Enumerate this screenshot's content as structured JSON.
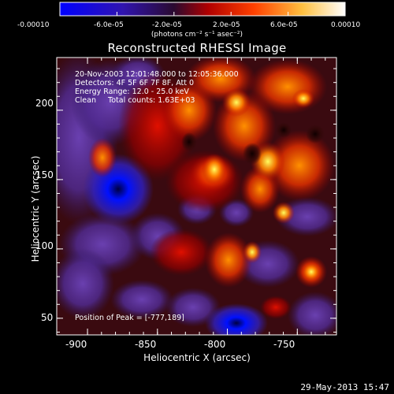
{
  "colorbar": {
    "tick_labels": [
      "-0.00010",
      "-6.0e-05",
      "-2.0e-05",
      "2.0e-05",
      "6.0e-05",
      "0.00010"
    ],
    "units_label": "(photons cm⁻² s⁻¹ asec⁻²)",
    "colors": [
      "#0000ff",
      "#2a1070",
      "#301040",
      "#c00000",
      "#ff6000",
      "#ffff80",
      "#ffffff"
    ]
  },
  "chart_data": {
    "type": "heatmap",
    "title": "Reconstructed RHESSI Image",
    "xlabel": "Heliocentric X (arcsec)",
    "ylabel": "Heliocentric Y (arcsec)",
    "xlim": [
      -922,
      -722
    ],
    "ylim": [
      38,
      238
    ],
    "x_ticks": [
      -900,
      -850,
      -800,
      -750
    ],
    "x_tick_labels": [
      "-900",
      "-850",
      "-800",
      "-750"
    ],
    "y_ticks": [
      50,
      100,
      150,
      200
    ],
    "y_tick_labels": [
      "50",
      "100",
      "150",
      "200"
    ],
    "value_range": [
      -0.0001,
      0.0001
    ],
    "peak": {
      "x": -777,
      "y": 189
    },
    "minimum": {
      "x": -875,
      "y": 140
    }
  },
  "annotations": {
    "time_range": "20-Nov-2003 12:01:48.000 to 12:05:36.000",
    "detectors": "Detectors: 4F 5F 6F 7F 8F, Att 0",
    "energy_range": "Energy Range: 12.0 - 25.0 keV",
    "clean": "Clean     Total counts: 1.63E+03",
    "peak_position": "Position of Peak = [-777,189]"
  },
  "footer": {
    "date": "29-May-2013 15:47"
  }
}
